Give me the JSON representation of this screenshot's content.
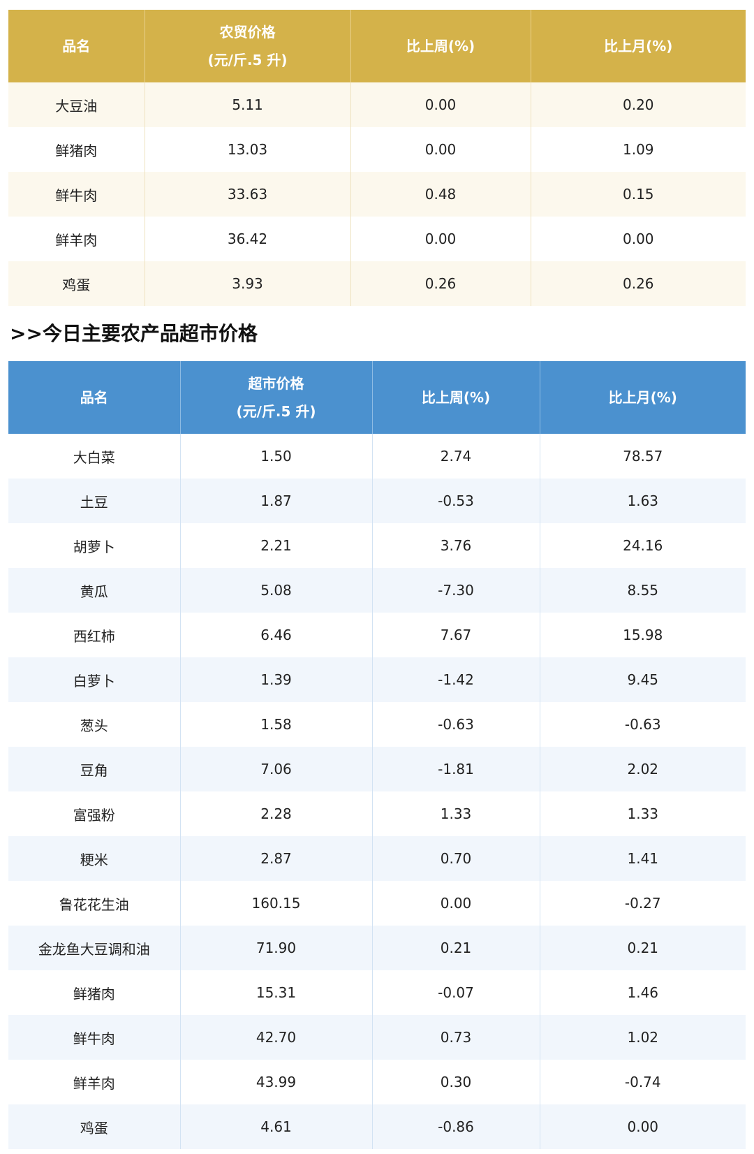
{
  "market_table": {
    "header_fill": "#d4b24a",
    "headers": {
      "name": "品名",
      "price_line1": "农贸价格",
      "price_line2": "(元/斤.5 升)",
      "week": "比上周(%)",
      "month": "比上月(%)"
    },
    "rows": [
      [
        "大豆油",
        "5.11",
        "0.00",
        "0.20"
      ],
      [
        "鲜猪肉",
        "13.03",
        "0.00",
        "1.09"
      ],
      [
        "鲜牛肉",
        "33.63",
        "0.48",
        "0.15"
      ],
      [
        "鲜羊肉",
        "36.42",
        "0.00",
        "0.00"
      ],
      [
        "鸡蛋",
        "3.93",
        "0.26",
        "0.26"
      ]
    ]
  },
  "supermarket_heading": ">>今日主要农产品超市价格",
  "supermarket_table": {
    "header_fill": "#4b91cf",
    "headers": {
      "name": "品名",
      "price_line1": "超市价格",
      "price_line2": "(元/斤.5 升)",
      "week": "比上周(%)",
      "month": "比上月(%)"
    },
    "rows": [
      [
        "大白菜",
        "1.50",
        "2.74",
        "78.57"
      ],
      [
        "土豆",
        "1.87",
        "-0.53",
        "1.63"
      ],
      [
        "胡萝卜",
        "2.21",
        "3.76",
        "24.16"
      ],
      [
        "黄瓜",
        "5.08",
        "-7.30",
        "8.55"
      ],
      [
        "西红柿",
        "6.46",
        "7.67",
        "15.98"
      ],
      [
        "白萝卜",
        "1.39",
        "-1.42",
        "9.45"
      ],
      [
        "葱头",
        "1.58",
        "-0.63",
        "-0.63"
      ],
      [
        "豆角",
        "7.06",
        "-1.81",
        "2.02"
      ],
      [
        "富强粉",
        "2.28",
        "1.33",
        "1.33"
      ],
      [
        "粳米",
        "2.87",
        "0.70",
        "1.41"
      ],
      [
        "鲁花花生油",
        "160.15",
        "0.00",
        "-0.27"
      ],
      [
        "金龙鱼大豆调和油",
        "71.90",
        "0.21",
        "0.21"
      ],
      [
        "鲜猪肉",
        "15.31",
        "-0.07",
        "1.46"
      ],
      [
        "鲜牛肉",
        "42.70",
        "0.73",
        "1.02"
      ],
      [
        "鲜羊肉",
        "43.99",
        "0.30",
        "-0.74"
      ],
      [
        "鸡蛋",
        "4.61",
        "-0.86",
        "0.00"
      ]
    ]
  }
}
